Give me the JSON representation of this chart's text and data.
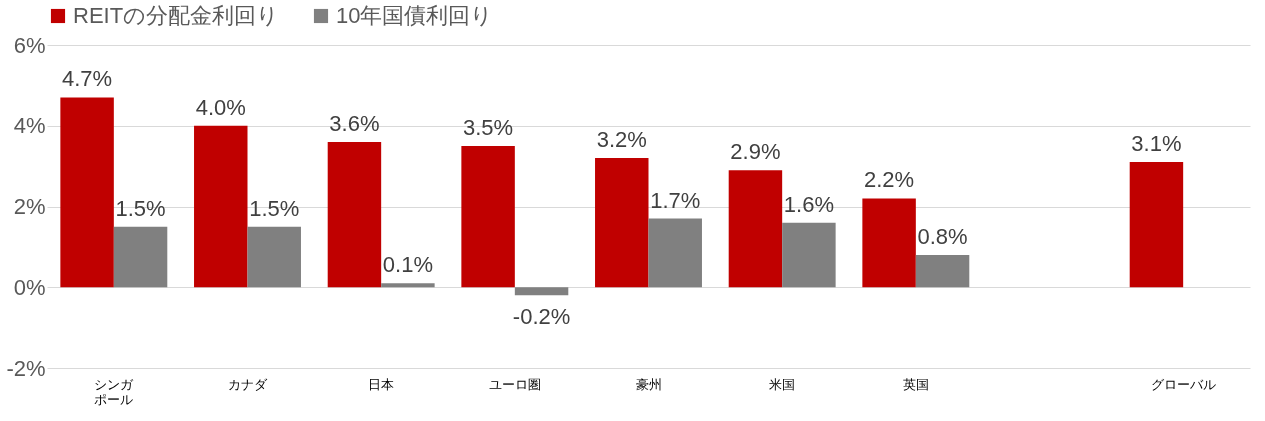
{
  "chart_data": {
    "type": "bar",
    "categories": [
      "シンガポール",
      "カナダ",
      "日本",
      "ユーロ圏",
      "豪州",
      "米国",
      "英国",
      null,
      "グローバル"
    ],
    "series": [
      {
        "name": "REITの分配金利回り",
        "color": "#c00000",
        "values": [
          4.7,
          4.0,
          3.6,
          3.5,
          3.2,
          2.9,
          2.2,
          null,
          3.1
        ],
        "value_labels": [
          "4.7%",
          "4.0%",
          "3.6%",
          "3.5%",
          "3.2%",
          "2.9%",
          "2.2%",
          null,
          "3.1%"
        ]
      },
      {
        "name": "10年国債利回り",
        "color": "#808080",
        "values": [
          1.5,
          1.5,
          0.1,
          -0.2,
          1.7,
          1.6,
          0.8,
          null,
          null
        ],
        "value_labels": [
          "1.5%",
          "1.5%",
          "0.1%",
          "-0.2%",
          "1.7%",
          "1.6%",
          "0.8%",
          null,
          null
        ]
      }
    ],
    "ylim": [
      -2,
      6
    ],
    "yticks": [
      {
        "value": -2,
        "label": "-2%"
      },
      {
        "value": 0,
        "label": "0%"
      },
      {
        "value": 2,
        "label": "2%"
      },
      {
        "value": 4,
        "label": "4%"
      },
      {
        "value": 6,
        "label": "6%"
      }
    ],
    "grid": "y",
    "legend": "top"
  }
}
